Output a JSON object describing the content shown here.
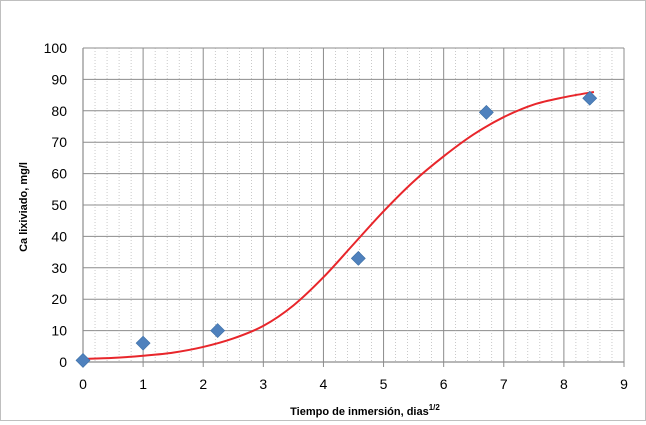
{
  "chart_data": {
    "type": "scatter",
    "title": "",
    "xlabel": "Tiempo de inmersión, dias",
    "xlabel_sup": "1/2",
    "ylabel": "Ca lixiviado, mg/l",
    "xlim": [
      0,
      9
    ],
    "ylim": [
      0,
      100
    ],
    "xticks": [
      "0",
      "1",
      "2",
      "3",
      "4",
      "5",
      "6",
      "7",
      "8",
      "9"
    ],
    "yticks": [
      "0",
      "10",
      "20",
      "30",
      "40",
      "50",
      "60",
      "70",
      "80",
      "90",
      "100"
    ],
    "grid": true,
    "legend": "none",
    "series": [
      {
        "kind": "scatter",
        "marker": "diamond",
        "color": "#4f81bd",
        "points": [
          {
            "x": 0,
            "y": 0.5
          },
          {
            "x": 1,
            "y": 6
          },
          {
            "x": 2.24,
            "y": 10
          },
          {
            "x": 4.58,
            "y": 33
          },
          {
            "x": 6.71,
            "y": 79.5
          },
          {
            "x": 8.43,
            "y": 84
          }
        ]
      },
      {
        "kind": "line",
        "color": "#e8262b",
        "points": [
          {
            "x": 0,
            "y": 1
          },
          {
            "x": 0.5,
            "y": 1.3
          },
          {
            "x": 1,
            "y": 2
          },
          {
            "x": 1.5,
            "y": 3
          },
          {
            "x": 2,
            "y": 4.8
          },
          {
            "x": 2.5,
            "y": 7.5
          },
          {
            "x": 3,
            "y": 11.5
          },
          {
            "x": 3.5,
            "y": 18
          },
          {
            "x": 4,
            "y": 27
          },
          {
            "x": 4.5,
            "y": 37.5
          },
          {
            "x": 5,
            "y": 48
          },
          {
            "x": 5.5,
            "y": 57.5
          },
          {
            "x": 6,
            "y": 65.5
          },
          {
            "x": 6.5,
            "y": 72.5
          },
          {
            "x": 7,
            "y": 78
          },
          {
            "x": 7.5,
            "y": 82
          },
          {
            "x": 8,
            "y": 84.3
          },
          {
            "x": 8.5,
            "y": 86
          }
        ]
      }
    ]
  }
}
